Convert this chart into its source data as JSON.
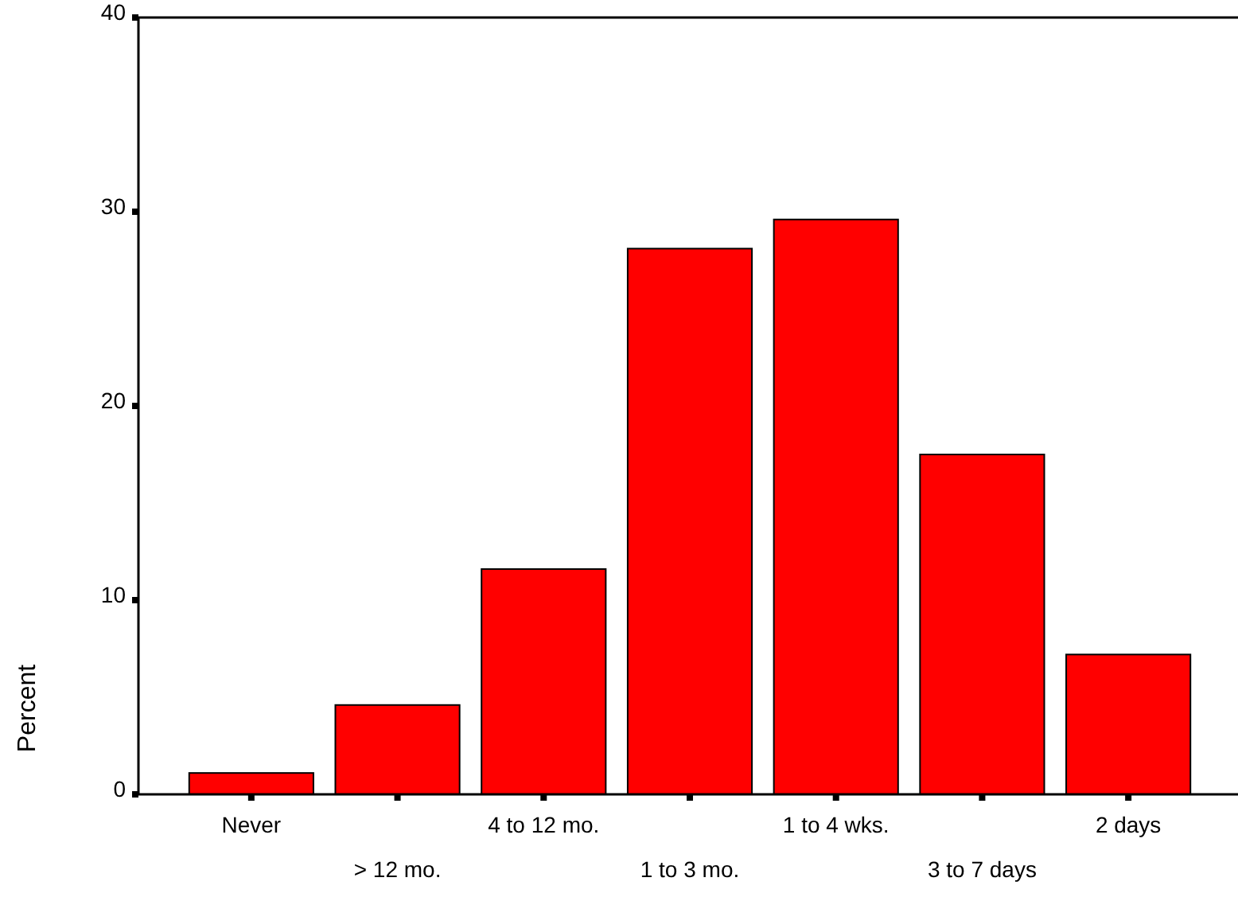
{
  "chart_data": {
    "type": "bar",
    "ylabel": "Percent",
    "categories": [
      "Never",
      "> 12 mo.",
      "4 to 12 mo.",
      "1 to 3 mo.",
      "1 to 4 wks.",
      "3 to 7 days",
      "2 days"
    ],
    "values": [
      1.1,
      4.6,
      11.6,
      28.1,
      29.6,
      17.5,
      7.2
    ],
    "color": "#ff0000",
    "ylim": [
      0,
      40
    ],
    "yticks": [
      0,
      10,
      20,
      30,
      40
    ]
  }
}
